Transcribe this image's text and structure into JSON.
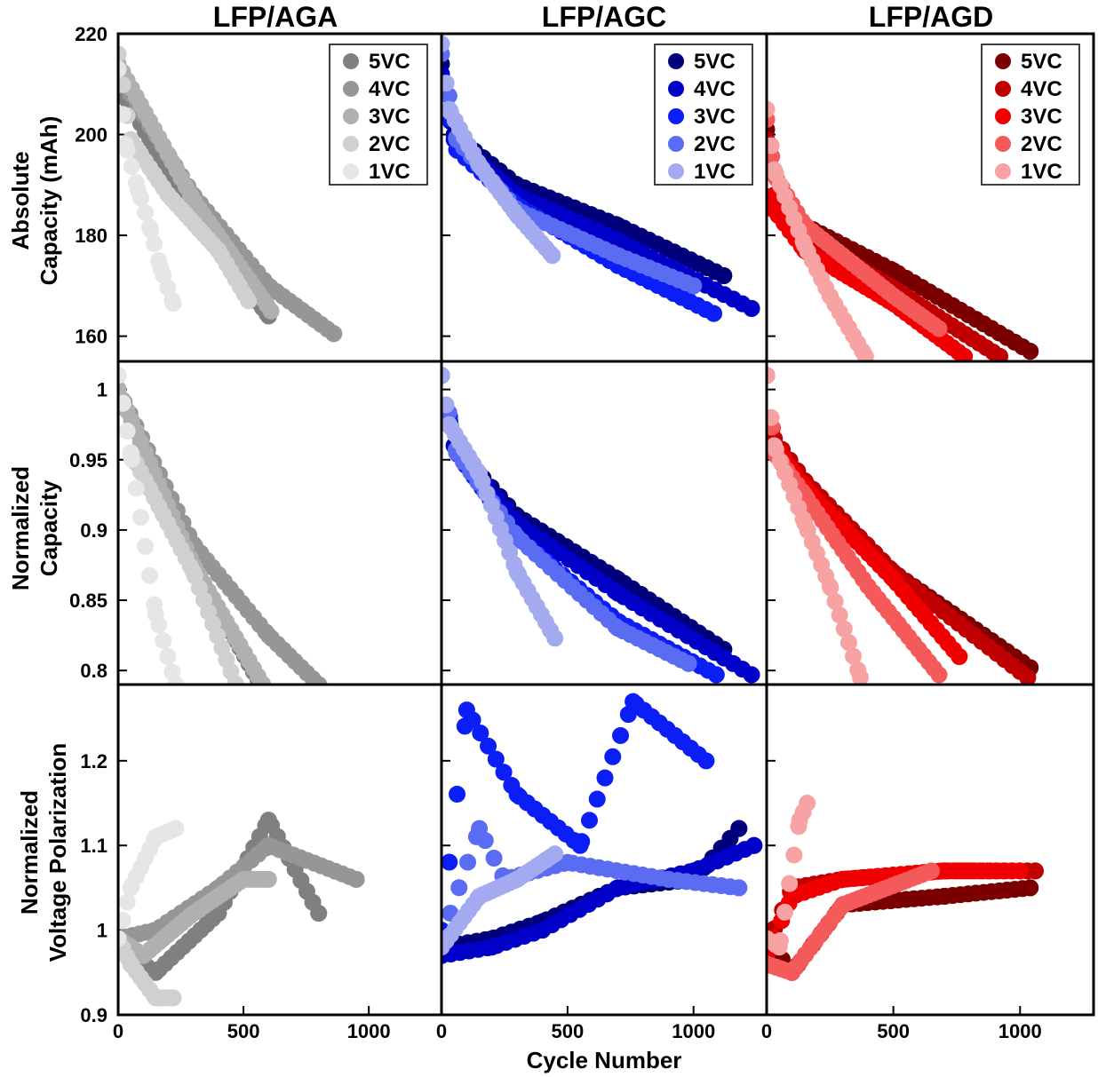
{
  "figure": {
    "xlabel": "Cycle Number",
    "columns": [
      "LFP/AGA",
      "LFP/AGC",
      "LFP/AGD"
    ],
    "row_ylabels": [
      [
        "Absolute",
        "Capacity (mAh)"
      ],
      [
        "Normalized",
        "Capacity"
      ],
      [
        "Normalized",
        "Voltage Polarization"
      ]
    ]
  },
  "chart_data": [
    {
      "type": "scatter",
      "title": "LFP/AGA",
      "xlabel": "",
      "ylabel": "Absolute Capacity (mAh)",
      "xlim": [
        0,
        1290
      ],
      "ylim": [
        155,
        220
      ],
      "xticks": [],
      "yticks": [
        160,
        180,
        200,
        220
      ],
      "legend": "top-right",
      "grid": false,
      "series": [
        {
          "name": "5VC",
          "color": "#808080",
          "x": [
            0,
            300,
            600
          ],
          "y": [
            210,
            184,
            164
          ]
        },
        {
          "name": "4VC",
          "color": "#969696",
          "x": [
            0,
            300,
            600,
            860
          ],
          "y": [
            212,
            188,
            170,
            160.5
          ]
        },
        {
          "name": "3VC",
          "color": "#b0b0b0",
          "x": [
            0,
            300,
            610
          ],
          "y": [
            214,
            187,
            165
          ]
        },
        {
          "name": "2VC",
          "color": "#d0d0d0",
          "x": [
            0,
            50,
            200,
            400,
            520
          ],
          "y": [
            216,
            199,
            188,
            177,
            167
          ]
        },
        {
          "name": "1VC",
          "color": "#e6e6e6",
          "x": [
            0,
            30,
            80,
            130,
            170,
            220
          ],
          "y": [
            213,
            198,
            189,
            181,
            173.5,
            166.5
          ]
        }
      ]
    },
    {
      "type": "scatter",
      "title": "LFP/AGC",
      "xlabel": "",
      "ylabel": "",
      "xlim": [
        0,
        1290
      ],
      "ylim": [
        155,
        220
      ],
      "xticks": [],
      "yticks": [
        160,
        180,
        200,
        220
      ],
      "legend": "top-right",
      "grid": false,
      "series": [
        {
          "name": "5VC",
          "color": "#00007a",
          "x": [
            0,
            50,
            300,
            700,
            1120
          ],
          "y": [
            214,
            200,
            190,
            182,
            172
          ]
        },
        {
          "name": "4VC",
          "color": "#0000c8",
          "x": [
            0,
            50,
            300,
            700,
            1230
          ],
          "y": [
            212,
            199,
            188,
            179,
            165.5
          ]
        },
        {
          "name": "3VC",
          "color": "#0a1ef5",
          "x": [
            0,
            60,
            300,
            700,
            1080
          ],
          "y": [
            210,
            197,
            186,
            174,
            164.5
          ]
        },
        {
          "name": "2VC",
          "color": "#5a6cf2",
          "x": [
            0,
            60,
            300,
            700,
            1000
          ],
          "y": [
            216,
            199,
            185,
            176,
            170
          ]
        },
        {
          "name": "1VC",
          "color": "#a3aaf0",
          "x": [
            0,
            30,
            150,
            300,
            440
          ],
          "y": [
            218,
            205,
            194,
            184,
            176
          ]
        }
      ]
    },
    {
      "type": "scatter",
      "title": "LFP/AGD",
      "xlabel": "",
      "ylabel": "",
      "xlim": [
        0,
        1290
      ],
      "ylim": [
        155,
        220
      ],
      "xticks": [],
      "yticks": [
        160,
        180,
        200,
        220
      ],
      "legend": "top-right",
      "grid": false,
      "series": [
        {
          "name": "5VC",
          "color": "#7a0000",
          "x": [
            0,
            30,
            150,
            500,
            1040
          ],
          "y": [
            201,
            188,
            182,
            173,
            157
          ]
        },
        {
          "name": "4VC",
          "color": "#c00000",
          "x": [
            0,
            30,
            150,
            500,
            920
          ],
          "y": [
            199,
            186,
            180,
            169.5,
            156
          ]
        },
        {
          "name": "3VC",
          "color": "#f00000",
          "x": [
            0,
            30,
            150,
            500,
            780
          ],
          "y": [
            197,
            185,
            177,
            166.5,
            156
          ]
        },
        {
          "name": "2VC",
          "color": "#f55a5a",
          "x": [
            0,
            30,
            150,
            500,
            680
          ],
          "y": [
            203,
            192,
            182,
            168,
            161.5
          ]
        },
        {
          "name": "1VC",
          "color": "#f7a3a3",
          "x": [
            0,
            30,
            150,
            250,
            390
          ],
          "y": [
            205,
            193,
            178,
            168,
            156
          ]
        }
      ]
    },
    {
      "type": "scatter",
      "title": "",
      "xlabel": "",
      "ylabel": "Normalized Capacity",
      "xlim": [
        0,
        1290
      ],
      "ylim": [
        0.79,
        1.02
      ],
      "xticks": [],
      "yticks": [
        0.8,
        0.85,
        0.9,
        0.95,
        1
      ],
      "grid": false,
      "series": [
        {
          "name": "5VC",
          "color": "#808080",
          "x": [
            0,
            300,
            600
          ],
          "y": [
            1.0,
            0.875,
            0.78
          ]
        },
        {
          "name": "4VC",
          "color": "#969696",
          "x": [
            0,
            300,
            600,
            800
          ],
          "y": [
            1.0,
            0.89,
            0.825,
            0.79
          ]
        },
        {
          "name": "3VC",
          "color": "#b0b0b0",
          "x": [
            0,
            300,
            610
          ],
          "y": [
            1.0,
            0.875,
            0.78
          ]
        },
        {
          "name": "2VC",
          "color": "#d0d0d0",
          "x": [
            0,
            50,
            300,
            480
          ],
          "y": [
            1.01,
            0.955,
            0.87,
            0.785
          ]
        },
        {
          "name": "1VC",
          "color": "#e6e6e6",
          "x": [
            0,
            50,
            150,
            230
          ],
          "y": [
            1.01,
            0.955,
            0.84,
            0.79
          ]
        }
      ]
    },
    {
      "type": "scatter",
      "title": "",
      "xlabel": "",
      "ylabel": "",
      "xlim": [
        0,
        1290
      ],
      "ylim": [
        0.79,
        1.02
      ],
      "xticks": [],
      "yticks": [
        0.8,
        0.85,
        0.9,
        0.95,
        1
      ],
      "grid": false,
      "series": [
        {
          "name": "5VC",
          "color": "#00007a",
          "x": [
            0,
            50,
            300,
            700,
            1120
          ],
          "y": [
            1.01,
            0.96,
            0.91,
            0.865,
            0.815
          ]
        },
        {
          "name": "4VC",
          "color": "#0000c8",
          "x": [
            0,
            50,
            300,
            700,
            1230
          ],
          "y": [
            1.01,
            0.96,
            0.905,
            0.855,
            0.797
          ]
        },
        {
          "name": "3VC",
          "color": "#0a1ef5",
          "x": [
            0,
            60,
            300,
            700,
            1090
          ],
          "y": [
            1.01,
            0.955,
            0.895,
            0.835,
            0.797
          ]
        },
        {
          "name": "2VC",
          "color": "#5a6cf2",
          "x": [
            0,
            60,
            300,
            700,
            980
          ],
          "y": [
            1.01,
            0.955,
            0.895,
            0.83,
            0.805
          ]
        },
        {
          "name": "1VC",
          "color": "#a3aaf0",
          "x": [
            0,
            30,
            150,
            300,
            450
          ],
          "y": [
            1.01,
            0.975,
            0.94,
            0.87,
            0.823
          ]
        }
      ]
    },
    {
      "type": "scatter",
      "title": "",
      "xlabel": "",
      "ylabel": "",
      "xlim": [
        0,
        1290
      ],
      "ylim": [
        0.79,
        1.02
      ],
      "xticks": [],
      "yticks": [
        0.8,
        0.85,
        0.9,
        0.95,
        1
      ],
      "grid": false,
      "series": [
        {
          "name": "5VC",
          "color": "#7a0000",
          "x": [
            0,
            30,
            150,
            500,
            1040
          ],
          "y": [
            1.01,
            0.965,
            0.935,
            0.87,
            0.802
          ]
        },
        {
          "name": "4VC",
          "color": "#c00000",
          "x": [
            0,
            30,
            150,
            500,
            1030
          ],
          "y": [
            1.01,
            0.965,
            0.935,
            0.87,
            0.795
          ]
        },
        {
          "name": "3VC",
          "color": "#f00000",
          "x": [
            0,
            30,
            150,
            500,
            760
          ],
          "y": [
            1.01,
            0.96,
            0.93,
            0.865,
            0.81
          ]
        },
        {
          "name": "2VC",
          "color": "#f55a5a",
          "x": [
            0,
            30,
            150,
            400,
            680
          ],
          "y": [
            1.01,
            0.955,
            0.925,
            0.86,
            0.797
          ]
        },
        {
          "name": "1VC",
          "color": "#f7a3a3",
          "x": [
            0,
            30,
            150,
            250,
            370
          ],
          "y": [
            1.01,
            0.96,
            0.905,
            0.86,
            0.795
          ]
        }
      ]
    },
    {
      "type": "scatter",
      "title": "",
      "xlabel": "",
      "ylabel": "Normalized Voltage Polarization",
      "xlim": [
        0,
        1290
      ],
      "ylim": [
        0.9,
        1.29
      ],
      "xticks": [
        0,
        500,
        1000
      ],
      "yticks": [
        0.9,
        1,
        1.1,
        1.2
      ],
      "grid": false,
      "series": [
        {
          "name": "5VC",
          "color": "#808080",
          "x": [
            0,
            150,
            400,
            600,
            800
          ],
          "y": [
            0.98,
            0.95,
            1.02,
            1.13,
            1.02
          ]
        },
        {
          "name": "4VC",
          "color": "#969696",
          "x": [
            0,
            150,
            400,
            600,
            950
          ],
          "y": [
            0.99,
            1.0,
            1.05,
            1.1,
            1.06
          ]
        },
        {
          "name": "3VC",
          "color": "#b0b0b0",
          "x": [
            0,
            100,
            300,
            500,
            600
          ],
          "y": [
            0.99,
            0.97,
            1.02,
            1.06,
            1.06
          ]
        },
        {
          "name": "2VC",
          "color": "#d0d0d0",
          "x": [
            0,
            50,
            150,
            220
          ],
          "y": [
            0.99,
            0.96,
            0.92,
            0.92
          ]
        },
        {
          "name": "1VC",
          "color": "#e6e6e6",
          "x": [
            0,
            50,
            150,
            230
          ],
          "y": [
            0.99,
            1.05,
            1.11,
            1.12
          ]
        }
      ]
    },
    {
      "type": "scatter",
      "title": "",
      "xlabel": "",
      "ylabel": "",
      "xlim": [
        0,
        1290
      ],
      "ylim": [
        0.9,
        1.29
      ],
      "xticks": [
        0,
        500,
        1000
      ],
      "yticks": [
        0.9,
        1,
        1.1,
        1.2
      ],
      "grid": false,
      "series": [
        {
          "name": "5VC",
          "color": "#00007a",
          "x": [
            0,
            200,
            400,
            700,
            1000,
            1180
          ],
          "y": [
            0.98,
            0.99,
            1.01,
            1.05,
            1.06,
            1.12
          ]
        },
        {
          "name": "4VC",
          "color": "#0000c8",
          "x": [
            0,
            200,
            400,
            700,
            1000,
            1240
          ],
          "y": [
            0.97,
            0.98,
            1.0,
            1.05,
            1.07,
            1.1
          ]
        },
        {
          "name": "3VC",
          "color": "#0a1ef5",
          "x": [
            0,
            100,
            300,
            550,
            760,
            1050
          ],
          "y": [
            1.0,
            1.26,
            1.16,
            1.1,
            1.27,
            1.2
          ]
        },
        {
          "name": "2VC",
          "color": "#5a6cf2",
          "x": [
            0,
            150,
            250,
            500,
            900,
            1180
          ],
          "y": [
            0.99,
            1.12,
            1.06,
            1.08,
            1.06,
            1.05
          ]
        },
        {
          "name": "1VC",
          "color": "#a3aaf0",
          "x": [
            0,
            150,
            300,
            450
          ],
          "y": [
            0.98,
            1.04,
            1.06,
            1.09
          ]
        }
      ]
    },
    {
      "type": "scatter",
      "title": "",
      "xlabel": "",
      "ylabel": "",
      "xlim": [
        0,
        1290
      ],
      "ylim": [
        0.9,
        1.29
      ],
      "xticks": [
        0,
        500,
        1000
      ],
      "yticks": [
        0.9,
        1,
        1.1,
        1.2
      ],
      "grid": false,
      "series": [
        {
          "name": "5VC",
          "color": "#7a0000",
          "x": [
            0,
            100,
            300,
            700,
            1040
          ],
          "y": [
            0.99,
            0.95,
            1.03,
            1.04,
            1.05
          ]
        },
        {
          "name": "4VC",
          "color": "#c00000",
          "x": [
            0,
            100,
            300,
            700,
            1060
          ],
          "y": [
            0.98,
            1.05,
            1.06,
            1.07,
            1.07
          ]
        },
        {
          "name": "3VC",
          "color": "#f00000",
          "x": [
            0,
            100,
            300,
            700,
            1000
          ],
          "y": [
            0.97,
            1.04,
            1.06,
            1.07,
            1.07
          ]
        },
        {
          "name": "2VC",
          "color": "#f55a5a",
          "x": [
            0,
            100,
            300,
            650
          ],
          "y": [
            0.96,
            0.95,
            1.03,
            1.07
          ]
        },
        {
          "name": "1VC",
          "color": "#f7a3a3",
          "x": [
            0,
            50,
            130,
            160
          ],
          "y": [
            0.99,
            0.98,
            1.13,
            1.15
          ]
        }
      ]
    }
  ]
}
